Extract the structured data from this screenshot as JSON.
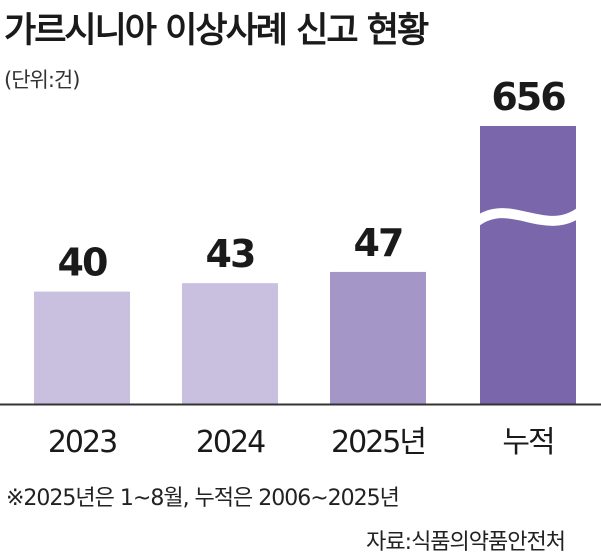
{
  "title": "가르시니아 이상사례 신고 현황",
  "unit": "(단위:건)",
  "note": "※2025년은 1~8월, 누적은 2006~2025년",
  "source": "자료:식품의약품안전처",
  "colors": {
    "bar_light": "#c9c0e0",
    "bar_mid": "#a497c8",
    "bar_dark": "#7a67ab",
    "axis": "#333333"
  },
  "chart_data": {
    "type": "bar",
    "categories": [
      "2023",
      "2024",
      "2025년",
      "누적"
    ],
    "values": [
      40,
      43,
      47,
      656
    ],
    "value_labels": [
      "40",
      "43",
      "47",
      "656"
    ],
    "axis_break_on": "누적",
    "grid": false
  }
}
